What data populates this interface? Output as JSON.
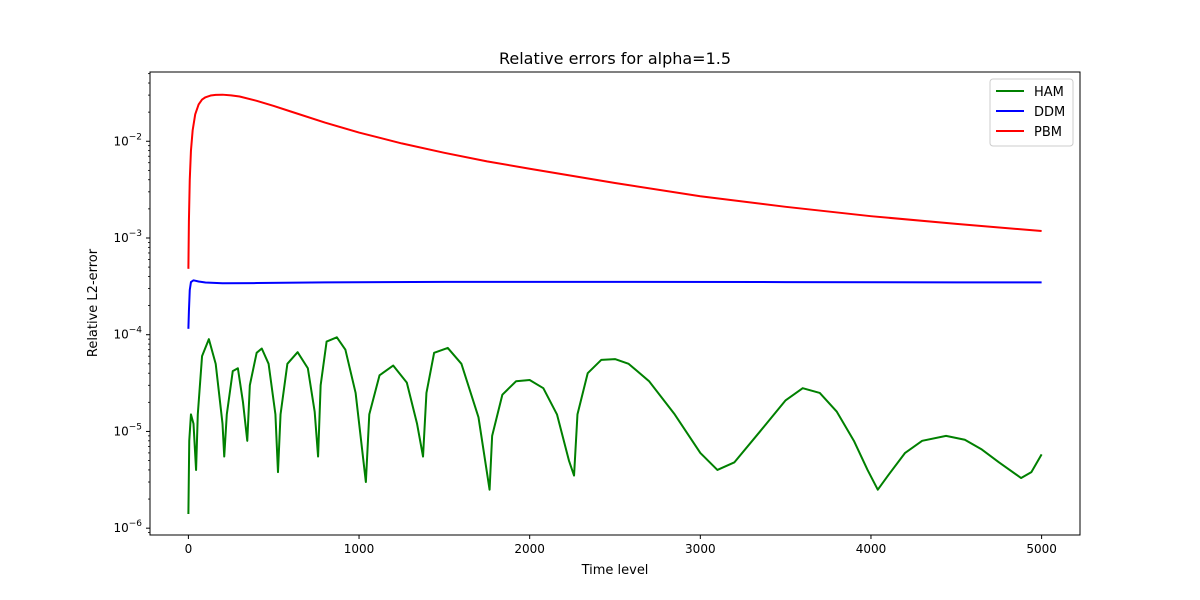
{
  "chart_data": {
    "type": "line",
    "title": "Relative errors for alpha=1.5",
    "xlabel": "Time level",
    "ylabel": "Relative L2-error",
    "yscale": "log",
    "xlim": [
      -225,
      5225
    ],
    "ylim": [
      8.5e-07,
      0.052
    ],
    "x_ticks": [
      {
        "value": 0,
        "label": "0"
      },
      {
        "value": 1000,
        "label": "1000"
      },
      {
        "value": 2000,
        "label": "2000"
      },
      {
        "value": 3000,
        "label": "3000"
      },
      {
        "value": 4000,
        "label": "4000"
      },
      {
        "value": 5000,
        "label": "5000"
      }
    ],
    "y_ticks": [
      {
        "value": 1e-06,
        "base": "10",
        "exp": "−6"
      },
      {
        "value": 1e-05,
        "base": "10",
        "exp": "−5"
      },
      {
        "value": 0.0001,
        "base": "10",
        "exp": "−4"
      },
      {
        "value": 0.001,
        "base": "10",
        "exp": "−3"
      },
      {
        "value": 0.01,
        "base": "10",
        "exp": "−2"
      }
    ],
    "grid": false,
    "legend": {
      "position": "top-right"
    },
    "series": [
      {
        "name": "HAM",
        "color": "#008000",
        "x": [
          0,
          5,
          15,
          30,
          45,
          55,
          80,
          120,
          160,
          200,
          210,
          225,
          260,
          290,
          320,
          345,
          360,
          400,
          430,
          470,
          510,
          525,
          540,
          580,
          640,
          700,
          740,
          760,
          775,
          810,
          870,
          920,
          980,
          1040,
          1060,
          1120,
          1200,
          1280,
          1340,
          1375,
          1395,
          1440,
          1520,
          1600,
          1700,
          1765,
          1780,
          1840,
          1920,
          2000,
          2080,
          2160,
          2230,
          2260,
          2280,
          2340,
          2420,
          2500,
          2580,
          2700,
          2850,
          3000,
          3100,
          3200,
          3350,
          3500,
          3600,
          3700,
          3800,
          3900,
          3980,
          4040,
          4100,
          4200,
          4300,
          4440,
          4550,
          4650,
          4750,
          4880,
          4940,
          5000
        ],
        "y": [
          1.4e-06,
          8e-06,
          1.5e-05,
          1.2e-05,
          4e-06,
          1.5e-05,
          6e-05,
          9e-05,
          5e-05,
          1.2e-05,
          5.5e-06,
          1.5e-05,
          4.2e-05,
          4.5e-05,
          2e-05,
          8e-06,
          3e-05,
          6.5e-05,
          7.2e-05,
          5e-05,
          1.5e-05,
          3.8e-06,
          1.5e-05,
          5e-05,
          6.6e-05,
          4.5e-05,
          1.6e-05,
          5.5e-06,
          3e-05,
          8.5e-05,
          9.4e-05,
          7e-05,
          2.5e-05,
          3e-06,
          1.5e-05,
          3.8e-05,
          4.8e-05,
          3.2e-05,
          1.2e-05,
          5.5e-06,
          2.5e-05,
          6.5e-05,
          7.3e-05,
          5e-05,
          1.4e-05,
          2.5e-06,
          9e-06,
          2.4e-05,
          3.3e-05,
          3.4e-05,
          2.8e-05,
          1.5e-05,
          5e-06,
          3.5e-06,
          1.5e-05,
          4e-05,
          5.5e-05,
          5.6e-05,
          5e-05,
          3.3e-05,
          1.5e-05,
          6e-06,
          4e-06,
          4.8e-06,
          1e-05,
          2.1e-05,
          2.8e-05,
          2.5e-05,
          1.6e-05,
          8e-06,
          4e-06,
          2.5e-06,
          3.5e-06,
          6e-06,
          8e-06,
          9e-06,
          8.2e-06,
          6.5e-06,
          4.8e-06,
          3.3e-06,
          3.8e-06,
          5.8e-06
        ]
      },
      {
        "name": "DDM",
        "color": "#0000ff",
        "x": [
          0,
          3,
          8,
          15,
          30,
          60,
          100,
          200,
          400,
          800,
          1500,
          2500,
          3500,
          4500,
          5000
        ],
        "y": [
          0.000115,
          0.000175,
          0.00029,
          0.00035,
          0.000365,
          0.000355,
          0.000347,
          0.00034,
          0.000342,
          0.000348,
          0.000352,
          0.000352,
          0.00035,
          0.000348,
          0.000348
        ]
      },
      {
        "name": "PBM",
        "color": "#ff0000",
        "x": [
          0,
          3,
          8,
          15,
          25,
          40,
          60,
          80,
          100,
          130,
          160,
          200,
          250,
          300,
          400,
          500,
          600,
          800,
          1000,
          1250,
          1500,
          1750,
          2000,
          2500,
          3000,
          3500,
          4000,
          4500,
          5000
        ],
        "y": [
          0.00048,
          0.0015,
          0.004,
          0.008,
          0.013,
          0.019,
          0.024,
          0.027,
          0.0285,
          0.0297,
          0.0302,
          0.0303,
          0.0298,
          0.029,
          0.0262,
          0.0232,
          0.0203,
          0.0156,
          0.0123,
          0.0095,
          0.0076,
          0.0062,
          0.0052,
          0.0037,
          0.0027,
          0.0021,
          0.00168,
          0.0014,
          0.00118
        ]
      }
    ]
  }
}
